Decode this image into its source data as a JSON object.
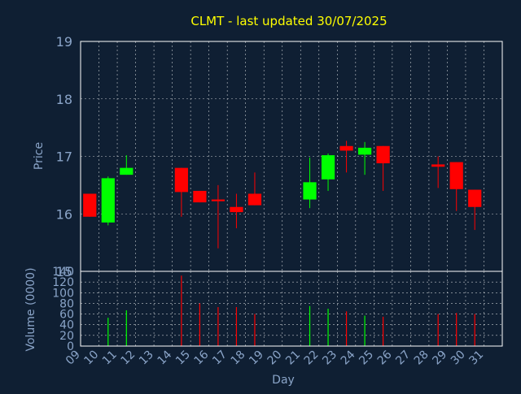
{
  "colors": {
    "background": "#0f1f33",
    "title": "#ffff00",
    "axis_text": "#8aa4c8",
    "frame": "#ffffff",
    "grid": "#ffffff",
    "up": "#00ff00",
    "down": "#ff0000"
  },
  "chart_data": [
    {
      "type": "candlestick",
      "title": "CLMT - last updated 30/07/2025",
      "ylabel": "Price",
      "ylim": [
        15,
        19
      ],
      "yticks": [
        15,
        16,
        17,
        18,
        19
      ],
      "grid": true,
      "x_day_range": [
        9,
        31
      ],
      "candles": [
        {
          "day": 9,
          "open": 16.35,
          "high": 16.35,
          "low": 15.95,
          "close": 15.95
        },
        {
          "day": 10,
          "open": 15.85,
          "high": 16.65,
          "low": 15.8,
          "close": 16.62
        },
        {
          "day": 11,
          "open": 16.68,
          "high": 17.02,
          "low": 16.68,
          "close": 16.8
        },
        {
          "day": 14,
          "open": 16.8,
          "high": 16.8,
          "low": 15.95,
          "close": 16.38
        },
        {
          "day": 15,
          "open": 16.4,
          "high": 16.4,
          "low": 16.2,
          "close": 16.2
        },
        {
          "day": 16,
          "open": 16.25,
          "high": 16.5,
          "low": 15.4,
          "close": 16.22
        },
        {
          "day": 17,
          "open": 16.12,
          "high": 16.35,
          "low": 15.75,
          "close": 16.03
        },
        {
          "day": 18,
          "open": 16.35,
          "high": 16.72,
          "low": 16.15,
          "close": 16.15
        },
        {
          "day": 21,
          "open": 16.25,
          "high": 16.98,
          "low": 16.1,
          "close": 16.55
        },
        {
          "day": 22,
          "open": 16.6,
          "high": 17.05,
          "low": 16.4,
          "close": 17.02
        },
        {
          "day": 23,
          "open": 17.18,
          "high": 17.27,
          "low": 16.72,
          "close": 17.1
        },
        {
          "day": 24,
          "open": 17.03,
          "high": 17.25,
          "low": 16.68,
          "close": 17.15
        },
        {
          "day": 25,
          "open": 17.18,
          "high": 17.18,
          "low": 16.4,
          "close": 16.88
        },
        {
          "day": 28,
          "open": 16.86,
          "high": 17.0,
          "low": 16.45,
          "close": 16.82
        },
        {
          "day": 29,
          "open": 16.9,
          "high": 16.9,
          "low": 16.05,
          "close": 16.43
        },
        {
          "day": 30,
          "open": 16.42,
          "high": 16.42,
          "low": 15.72,
          "close": 16.12
        }
      ]
    },
    {
      "type": "bar",
      "ylabel": "Volume (0000)",
      "xlabel": "Day",
      "ylim": [
        0,
        140
      ],
      "yticks": [
        0,
        20,
        40,
        60,
        80,
        100,
        120,
        140
      ],
      "grid": true,
      "categories": [
        "09",
        "10",
        "11",
        "12",
        "13",
        "14",
        "15",
        "16",
        "17",
        "18",
        "19",
        "20",
        "21",
        "22",
        "23",
        "24",
        "25",
        "26",
        "27",
        "28",
        "29",
        "30",
        "31"
      ],
      "volumes": [
        {
          "day": 10,
          "value": 53,
          "direction": "up"
        },
        {
          "day": 11,
          "value": 67,
          "direction": "up"
        },
        {
          "day": 14,
          "value": 132,
          "direction": "down"
        },
        {
          "day": 15,
          "value": 80,
          "direction": "down"
        },
        {
          "day": 16,
          "value": 73,
          "direction": "down"
        },
        {
          "day": 17,
          "value": 73,
          "direction": "down"
        },
        {
          "day": 18,
          "value": 60,
          "direction": "down"
        },
        {
          "day": 21,
          "value": 75,
          "direction": "up"
        },
        {
          "day": 22,
          "value": 70,
          "direction": "up"
        },
        {
          "day": 23,
          "value": 65,
          "direction": "down"
        },
        {
          "day": 24,
          "value": 57,
          "direction": "up"
        },
        {
          "day": 25,
          "value": 55,
          "direction": "down"
        },
        {
          "day": 28,
          "value": 60,
          "direction": "down"
        },
        {
          "day": 29,
          "value": 62,
          "direction": "down"
        },
        {
          "day": 30,
          "value": 60,
          "direction": "down"
        }
      ]
    }
  ]
}
